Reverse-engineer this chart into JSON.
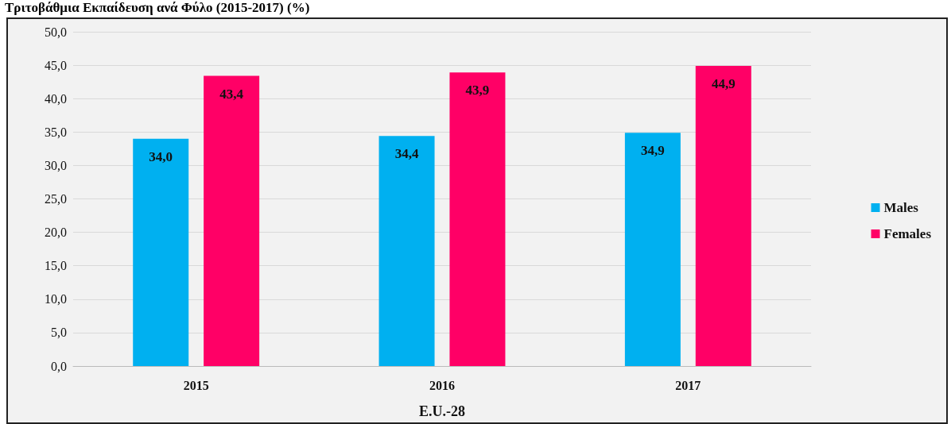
{
  "chart_data": {
    "type": "bar",
    "title": "Τριτοβάθμια Εκπαίδευση ανά Φύλο (2015-2017) (%)",
    "xlabel": "E.U.-28",
    "categories": [
      "2015",
      "2016",
      "2017"
    ],
    "series": [
      {
        "name": "Males",
        "color": "#00b0f0",
        "values": [
          34.0,
          34.4,
          34.9
        ],
        "value_labels": [
          "34,0",
          "34,4",
          "34,9"
        ]
      },
      {
        "name": "Females",
        "color": "#ff0066",
        "values": [
          43.4,
          43.9,
          44.9
        ],
        "value_labels": [
          "43,4",
          "43,9",
          "44,9"
        ]
      }
    ],
    "ylim": [
      0,
      50
    ],
    "yticks": [
      {
        "value": 0,
        "label": "0,0"
      },
      {
        "value": 5,
        "label": "5,0"
      },
      {
        "value": 10,
        "label": "10,0"
      },
      {
        "value": 15,
        "label": "15,0"
      },
      {
        "value": 20,
        "label": "20,0"
      },
      {
        "value": 25,
        "label": "25,0"
      },
      {
        "value": 30,
        "label": "30,0"
      },
      {
        "value": 35,
        "label": "35,0"
      },
      {
        "value": 40,
        "label": "40,0"
      },
      {
        "value": 45,
        "label": "45,0"
      },
      {
        "value": 50,
        "label": "50,0"
      }
    ],
    "grid": "y",
    "legend": "right"
  }
}
